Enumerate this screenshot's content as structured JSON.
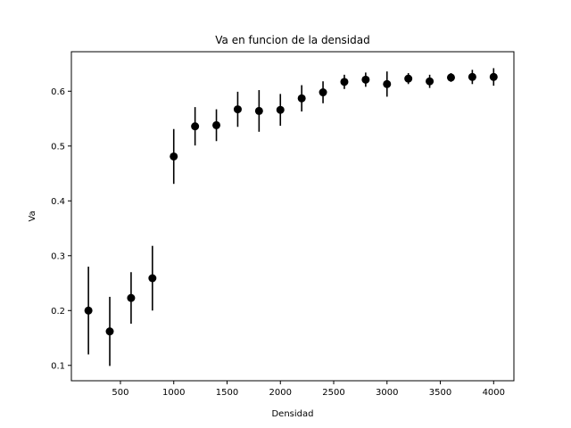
{
  "chart_data": {
    "type": "scatter",
    "title": "Va en funcion de la densidad",
    "xlabel": "Densidad",
    "ylabel": "Va",
    "xlim": [
      40,
      4190
    ],
    "ylim": [
      0.072,
      0.672
    ],
    "xticks": [
      500,
      1000,
      1500,
      2000,
      2500,
      3000,
      3500,
      4000
    ],
    "xtick_labels": [
      "500",
      "1000",
      "1500",
      "2000",
      "2500",
      "3000",
      "3500",
      "4000"
    ],
    "yticks": [
      0.1,
      0.2,
      0.3,
      0.4,
      0.5,
      0.6
    ],
    "ytick_labels": [
      "0.1",
      "0.2",
      "0.3",
      "0.4",
      "0.5",
      "0.6"
    ],
    "grid": false,
    "marker_color": "#000000",
    "series": [
      {
        "x": [
          200,
          400,
          600,
          800,
          1000,
          1200,
          1400,
          1600,
          1800,
          2000,
          2200,
          2400,
          2600,
          2800,
          3000,
          3200,
          3400,
          3600,
          3800,
          4000
        ],
        "y": [
          0.2,
          0.162,
          0.223,
          0.259,
          0.481,
          0.536,
          0.538,
          0.567,
          0.564,
          0.566,
          0.587,
          0.598,
          0.617,
          0.621,
          0.613,
          0.623,
          0.618,
          0.625,
          0.626,
          0.626
        ],
        "yerr": [
          0.08,
          0.063,
          0.047,
          0.059,
          0.05,
          0.035,
          0.029,
          0.032,
          0.038,
          0.029,
          0.024,
          0.02,
          0.013,
          0.013,
          0.023,
          0.01,
          0.012,
          0.008,
          0.013,
          0.016
        ]
      }
    ]
  }
}
